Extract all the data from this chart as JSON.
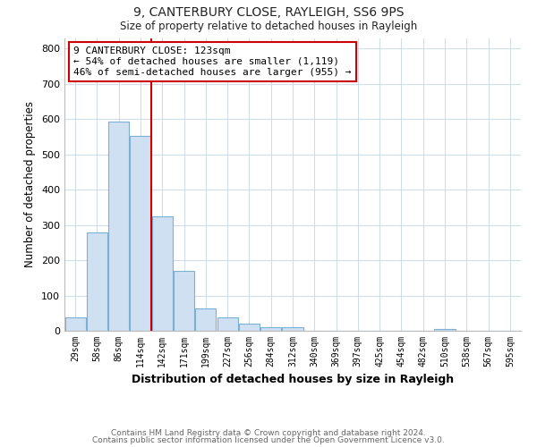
{
  "title1": "9, CANTERBURY CLOSE, RAYLEIGH, SS6 9PS",
  "title2": "Size of property relative to detached houses in Rayleigh",
  "xlabel": "Distribution of detached houses by size in Rayleigh",
  "ylabel": "Number of detached properties",
  "bar_labels": [
    "29sqm",
    "58sqm",
    "86sqm",
    "114sqm",
    "142sqm",
    "171sqm",
    "199sqm",
    "227sqm",
    "256sqm",
    "284sqm",
    "312sqm",
    "340sqm",
    "369sqm",
    "397sqm",
    "425sqm",
    "454sqm",
    "482sqm",
    "510sqm",
    "538sqm",
    "567sqm",
    "595sqm"
  ],
  "bar_heights": [
    38,
    278,
    593,
    553,
    325,
    170,
    63,
    38,
    20,
    10,
    10,
    0,
    0,
    0,
    0,
    0,
    0,
    5,
    0,
    0,
    0
  ],
  "bar_color": "#cfe0f3",
  "bar_edge_color": "#7ab0d4",
  "vline_x": 3.5,
  "vline_color": "#cc0000",
  "annotation_title": "9 CANTERBURY CLOSE: 123sqm",
  "annotation_line1": "← 54% of detached houses are smaller (1,119)",
  "annotation_line2": "46% of semi-detached houses are larger (955) →",
  "ylim": [
    0,
    830
  ],
  "yticks": [
    0,
    100,
    200,
    300,
    400,
    500,
    600,
    700,
    800
  ],
  "footer1": "Contains HM Land Registry data © Crown copyright and database right 2024.",
  "footer2": "Contains public sector information licensed under the Open Government Licence v3.0.",
  "bg_color": "#ffffff",
  "grid_color": "#d0dcea"
}
